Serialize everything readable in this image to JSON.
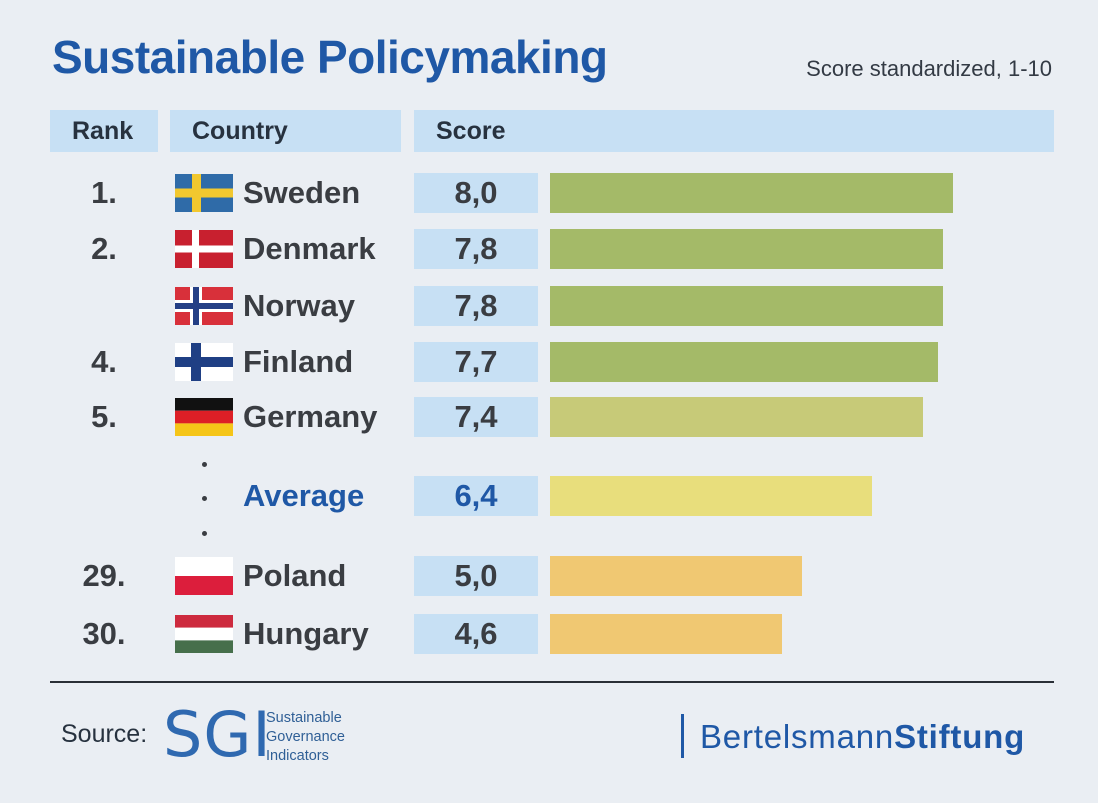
{
  "header": {
    "title": "Sustainable Policymaking",
    "subtitle": "Score standardized, 1-10"
  },
  "table_headers": {
    "rank": "Rank",
    "country": "Country",
    "score": "Score"
  },
  "chart_data": {
    "type": "bar",
    "orientation": "horizontal",
    "title": "Sustainable Policymaking",
    "subtitle": "Score standardized, 1-10",
    "xlim": [
      0,
      10
    ],
    "rows": [
      {
        "rank": "1.",
        "country": "Sweden",
        "score": 8.0,
        "score_label": "8,0",
        "flag": "sweden-flag",
        "bar_color": "#a4ba68"
      },
      {
        "rank": "2.",
        "country": "Denmark",
        "score": 7.8,
        "score_label": "7,8",
        "flag": "denmark-flag",
        "bar_color": "#a4ba68"
      },
      {
        "rank": "",
        "country": "Norway",
        "score": 7.8,
        "score_label": "7,8",
        "flag": "norway-flag",
        "bar_color": "#a4ba68"
      },
      {
        "rank": "4.",
        "country": "Finland",
        "score": 7.7,
        "score_label": "7,7",
        "flag": "finland-flag",
        "bar_color": "#a4ba68"
      },
      {
        "rank": "5.",
        "country": "Germany",
        "score": 7.4,
        "score_label": "7,4",
        "flag": "germany-flag",
        "bar_color": "#c7ca78"
      },
      {
        "rank": "",
        "country": "Average",
        "score": 6.4,
        "score_label": "6,4",
        "flag": "",
        "bar_color": "#e8de7c",
        "is_average": true
      },
      {
        "rank": "29.",
        "country": "Poland",
        "score": 5.0,
        "score_label": "5,0",
        "flag": "poland-flag",
        "bar_color": "#f0c872"
      },
      {
        "rank": "30.",
        "country": "Hungary",
        "score": 4.6,
        "score_label": "4,6",
        "flag": "hungary-flag",
        "bar_color": "#f0c872"
      }
    ]
  },
  "footer": {
    "source_label": "Source:",
    "sgi_logo": "SGI",
    "sgi_lines": [
      "Sustainable",
      "Governance",
      "Indicators"
    ],
    "bertelsmann_regular": "Bertelsmann",
    "bertelsmann_bold": "Stiftung"
  }
}
